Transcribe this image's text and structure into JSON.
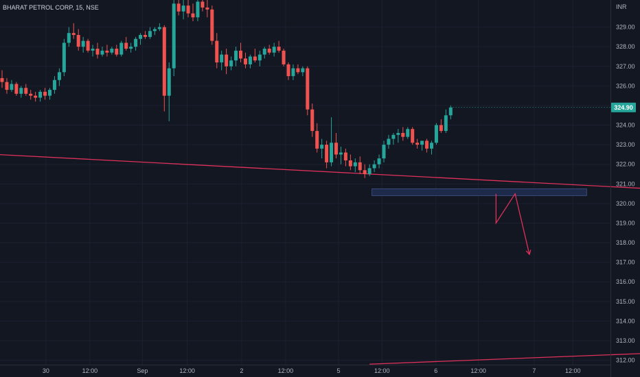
{
  "symbol_title": "BHARAT PETROL CORP, 15, NSE",
  "currency": "INR",
  "colors": {
    "background": "#131722",
    "up": "#26a69a",
    "down": "#ef5350",
    "trendline": "#e0315a",
    "zone_fill": "#1e2a4a",
    "zone_border": "#3a4a7a",
    "text": "#b2b5be"
  },
  "current_price": "324.90",
  "chart_data": {
    "type": "candlestick",
    "symbol": "BHARAT PETROL CORP",
    "interval": "15",
    "exchange": "NSE",
    "y_ticks": [
      "329.00",
      "328.00",
      "327.00",
      "326.00",
      "325.00",
      "324.00",
      "323.00",
      "322.00",
      "321.00",
      "320.00",
      "319.00",
      "318.00",
      "317.00",
      "316.00",
      "315.00",
      "314.00",
      "313.00",
      "312.00"
    ],
    "x_ticks": [
      "30",
      "12:00",
      "Sep",
      "12:00",
      "2",
      "12:00",
      "5",
      "12:00",
      "6",
      "12:00",
      "7",
      "12:00"
    ],
    "ylim": [
      311.6,
      330.0
    ],
    "last_price": 324.9,
    "candles": [
      [
        326.4,
        326.8,
        325.9,
        326.2
      ],
      [
        326.2,
        326.4,
        325.6,
        325.8
      ],
      [
        325.8,
        326.3,
        325.7,
        326.1
      ],
      [
        326.1,
        326.2,
        325.5,
        325.6
      ],
      [
        325.6,
        326.0,
        325.4,
        325.9
      ],
      [
        325.9,
        326.1,
        325.5,
        325.6
      ],
      [
        325.6,
        325.8,
        325.3,
        325.5
      ],
      [
        325.5,
        325.7,
        325.2,
        325.4
      ],
      [
        325.4,
        325.8,
        325.2,
        325.7
      ],
      [
        325.7,
        325.9,
        325.3,
        325.5
      ],
      [
        325.5,
        325.9,
        325.3,
        325.8
      ],
      [
        325.8,
        326.5,
        325.6,
        326.3
      ],
      [
        326.3,
        326.9,
        326.0,
        326.7
      ],
      [
        326.7,
        328.4,
        326.5,
        328.2
      ],
      [
        328.2,
        329.0,
        328.0,
        328.7
      ],
      [
        328.7,
        329.2,
        328.4,
        328.6
      ],
      [
        328.6,
        328.9,
        327.8,
        328.0
      ],
      [
        328.0,
        328.5,
        327.7,
        328.3
      ],
      [
        328.3,
        328.4,
        327.7,
        327.8
      ],
      [
        327.8,
        328.1,
        327.5,
        327.9
      ],
      [
        327.9,
        328.2,
        327.4,
        327.6
      ],
      [
        327.6,
        328.0,
        327.5,
        327.8
      ],
      [
        327.8,
        328.1,
        327.5,
        327.7
      ],
      [
        327.7,
        328.0,
        327.6,
        327.9
      ],
      [
        327.9,
        328.1,
        327.5,
        327.6
      ],
      [
        327.6,
        328.3,
        327.5,
        328.2
      ],
      [
        328.2,
        328.5,
        327.8,
        327.9
      ],
      [
        327.9,
        328.2,
        327.7,
        328.0
      ],
      [
        328.0,
        328.5,
        327.8,
        328.4
      ],
      [
        328.4,
        328.7,
        328.1,
        328.6
      ],
      [
        328.6,
        328.8,
        328.4,
        328.5
      ],
      [
        328.5,
        329.0,
        328.4,
        328.8
      ],
      [
        328.8,
        329.0,
        328.6,
        328.9
      ],
      [
        328.9,
        329.2,
        328.8,
        329.0
      ],
      [
        329.0,
        329.1,
        324.7,
        325.5
      ],
      [
        325.5,
        327.2,
        324.2,
        326.9
      ],
      [
        326.9,
        330.5,
        326.5,
        330.2
      ],
      [
        330.2,
        331.0,
        329.6,
        329.8
      ],
      [
        329.8,
        330.4,
        329.4,
        330.1
      ],
      [
        330.1,
        330.6,
        329.5,
        329.7
      ],
      [
        329.7,
        330.2,
        329.3,
        329.5
      ],
      [
        329.5,
        330.5,
        329.3,
        330.3
      ],
      [
        330.3,
        330.9,
        329.8,
        330.0
      ],
      [
        330.0,
        330.4,
        329.5,
        329.9
      ],
      [
        329.9,
        330.1,
        328.1,
        328.3
      ],
      [
        328.3,
        328.7,
        326.9,
        327.2
      ],
      [
        327.2,
        327.8,
        326.8,
        327.6
      ],
      [
        327.6,
        327.9,
        326.6,
        327.0
      ],
      [
        327.0,
        327.5,
        326.8,
        327.3
      ],
      [
        327.3,
        328.0,
        327.0,
        327.8
      ],
      [
        327.8,
        328.2,
        327.2,
        327.4
      ],
      [
        327.4,
        327.7,
        326.9,
        327.1
      ],
      [
        327.1,
        327.6,
        326.9,
        327.5
      ],
      [
        327.5,
        327.9,
        327.2,
        327.3
      ],
      [
        327.3,
        327.8,
        327.0,
        327.6
      ],
      [
        327.6,
        328.0,
        327.4,
        327.9
      ],
      [
        327.9,
        328.1,
        327.6,
        327.7
      ],
      [
        327.7,
        328.2,
        327.5,
        328.0
      ],
      [
        328.0,
        328.3,
        327.7,
        327.8
      ],
      [
        327.8,
        327.9,
        327.0,
        327.1
      ],
      [
        327.1,
        327.2,
        326.3,
        326.5
      ],
      [
        326.5,
        327.1,
        326.3,
        326.9
      ],
      [
        326.9,
        327.1,
        326.6,
        326.7
      ],
      [
        326.7,
        327.0,
        326.5,
        326.9
      ],
      [
        326.9,
        327.0,
        324.5,
        324.8
      ],
      [
        324.8,
        325.1,
        323.4,
        323.7
      ],
      [
        323.7,
        324.1,
        322.6,
        322.8
      ],
      [
        322.8,
        323.3,
        322.3,
        323.0
      ],
      [
        323.0,
        323.2,
        321.8,
        322.1
      ],
      [
        322.1,
        324.4,
        321.9,
        323.1
      ],
      [
        323.1,
        323.6,
        322.3,
        322.5
      ],
      [
        322.5,
        322.9,
        322.0,
        322.6
      ],
      [
        322.6,
        322.8,
        321.9,
        322.2
      ],
      [
        322.2,
        322.5,
        321.7,
        321.9
      ],
      [
        321.9,
        322.3,
        321.6,
        322.1
      ],
      [
        322.1,
        322.4,
        321.5,
        321.7
      ],
      [
        321.7,
        322.0,
        321.3,
        321.5
      ],
      [
        321.5,
        322.0,
        321.4,
        321.8
      ],
      [
        321.8,
        322.2,
        321.6,
        322.0
      ],
      [
        322.0,
        322.5,
        321.8,
        322.3
      ],
      [
        322.3,
        323.2,
        322.1,
        323.0
      ],
      [
        323.0,
        323.5,
        322.8,
        323.3
      ],
      [
        323.3,
        323.6,
        323.0,
        323.5
      ],
      [
        323.5,
        323.8,
        323.1,
        323.6
      ],
      [
        323.6,
        323.9,
        323.2,
        323.4
      ],
      [
        323.4,
        323.9,
        323.3,
        323.8
      ],
      [
        323.8,
        323.9,
        323.0,
        323.1
      ],
      [
        323.1,
        323.3,
        322.8,
        323.0
      ],
      [
        323.0,
        323.2,
        322.7,
        323.2
      ],
      [
        323.2,
        323.3,
        322.6,
        322.8
      ],
      [
        322.8,
        323.2,
        322.5,
        323.1
      ],
      [
        323.1,
        324.1,
        323.0,
        324.0
      ],
      [
        324.0,
        324.3,
        323.6,
        323.7
      ],
      [
        323.7,
        324.8,
        323.6,
        324.5
      ],
      [
        324.5,
        325.0,
        324.3,
        324.9
      ]
    ],
    "trendlines": [
      {
        "from": [
          -1.0,
          322.5
        ],
        "to": [
          140.0,
          320.7
        ]
      },
      {
        "from": [
          77.0,
          311.8
        ],
        "to": [
          140.0,
          312.4
        ]
      }
    ],
    "zone": {
      "x_from": 77.5,
      "x_to": 122.5,
      "y_top": 320.75,
      "y_bottom": 320.4
    },
    "projection": [
      [
        103.5,
        320.5
      ],
      [
        103.5,
        319.0
      ],
      [
        107.5,
        320.5
      ],
      [
        110.5,
        317.4
      ]
    ]
  }
}
